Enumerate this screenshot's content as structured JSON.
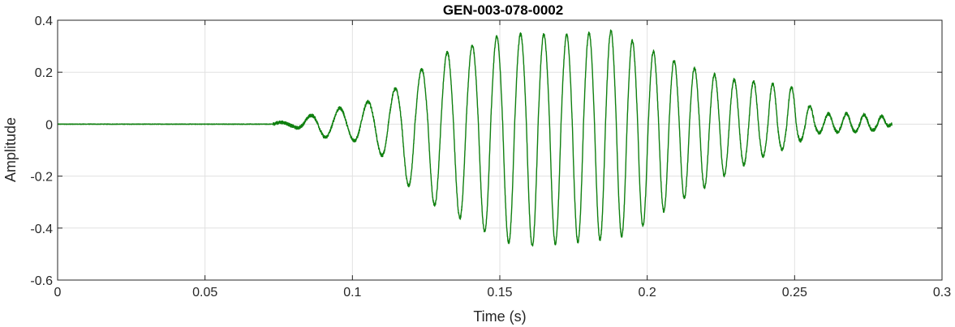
{
  "chart_data": {
    "type": "line",
    "title": "GEN-003-078-0002",
    "xlabel": "Time (s)",
    "ylabel": "Amplitude",
    "xlim": [
      0,
      0.3
    ],
    "ylim": [
      -0.6,
      0.4
    ],
    "xticks": [
      0,
      0.05,
      0.1,
      0.15,
      0.2,
      0.25,
      0.3
    ],
    "xtick_labels": [
      "0",
      "0.05",
      "0.1",
      "0.15",
      "0.2",
      "0.25",
      "0.3"
    ],
    "yticks": [
      -0.6,
      -0.4,
      -0.2,
      0,
      0.2,
      0.4
    ],
    "ytick_labels": [
      "-0.6",
      "-0.4",
      "-0.2",
      "0",
      "0.2",
      "0.4"
    ],
    "grid": true,
    "color": "#108010",
    "series": [
      {
        "signal_start": 0.073,
        "signal_end": 0.283,
        "envelope_points": [
          [
            0,
            0,
            0
          ],
          [
            0.073,
            0.005,
            -0.005
          ],
          [
            0.08,
            0.01,
            -0.01
          ],
          [
            0.085,
            0.03,
            -0.03
          ],
          [
            0.09,
            0.05,
            -0.05
          ],
          [
            0.1,
            0.07,
            -0.06
          ],
          [
            0.11,
            0.1,
            -0.12
          ],
          [
            0.12,
            0.18,
            -0.25
          ],
          [
            0.13,
            0.27,
            -0.33
          ],
          [
            0.14,
            0.3,
            -0.38
          ],
          [
            0.15,
            0.34,
            -0.45
          ],
          [
            0.16,
            0.35,
            -0.47
          ],
          [
            0.17,
            0.34,
            -0.46
          ],
          [
            0.18,
            0.35,
            -0.45
          ],
          [
            0.188,
            0.36,
            -0.44
          ],
          [
            0.195,
            0.32,
            -0.42
          ],
          [
            0.2,
            0.29,
            -0.38
          ],
          [
            0.21,
            0.24,
            -0.3
          ],
          [
            0.22,
            0.2,
            -0.24
          ],
          [
            0.23,
            0.17,
            -0.17
          ],
          [
            0.24,
            0.16,
            -0.12
          ],
          [
            0.25,
            0.14,
            -0.08
          ],
          [
            0.255,
            0.07,
            -0.04
          ],
          [
            0.26,
            0.04,
            -0.03
          ],
          [
            0.27,
            0.04,
            -0.03
          ],
          [
            0.28,
            0.03,
            -0.02
          ],
          [
            0.283,
            0,
            0
          ]
        ],
        "frequency_hz_start": 95,
        "frequency_hz_end": 170
      }
    ]
  }
}
